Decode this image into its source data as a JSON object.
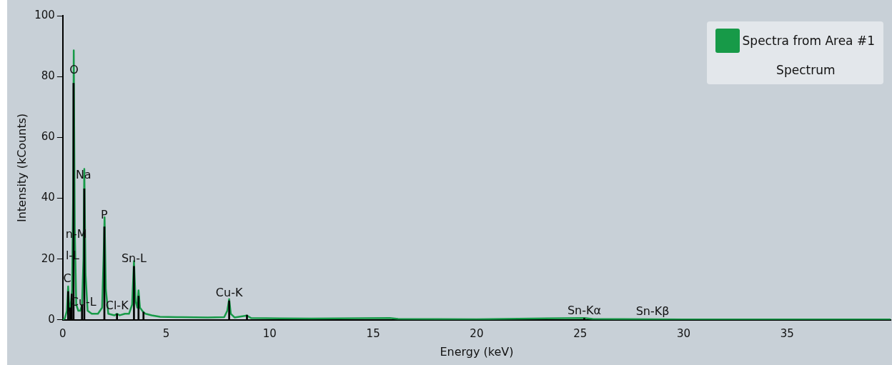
{
  "chart_data": {
    "type": "line",
    "xlabel": "Energy (keV)",
    "ylabel": "Intensity (kCounts)",
    "xlim": [
      0,
      40
    ],
    "xticks": [
      0,
      5,
      10,
      15,
      20,
      25,
      30,
      35
    ],
    "ylim": [
      0,
      100
    ],
    "yticks": [
      0,
      20,
      40,
      60,
      80,
      100
    ],
    "legend": "top right",
    "legend_title": "Spectrum",
    "marker": "none",
    "series": [
      {
        "name": "Spectra from Area #1",
        "color": "#179a48",
        "x": [
          0,
          0.1,
          0.2,
          0.26,
          0.32,
          0.4,
          0.45,
          0.5,
          0.53,
          0.58,
          0.65,
          0.75,
          0.85,
          0.93,
          1.0,
          1.04,
          1.1,
          1.2,
          1.4,
          1.7,
          1.9,
          1.97,
          2.02,
          2.08,
          2.2,
          2.5,
          2.62,
          2.75,
          3.0,
          3.2,
          3.35,
          3.44,
          3.52,
          3.6,
          3.66,
          3.73,
          3.9,
          4.0,
          4.3,
          4.7,
          5.5,
          7.0,
          7.8,
          7.95,
          8.04,
          8.12,
          8.3,
          8.9,
          9.1,
          10.5,
          12,
          15.8,
          16.2,
          20,
          25.2,
          25.6,
          30,
          40
        ],
        "values": [
          0,
          0.5,
          3,
          11,
          3,
          6,
          10,
          40,
          88.6,
          30,
          5,
          3,
          3,
          5,
          20,
          49.6,
          15,
          3,
          2,
          2,
          4,
          20,
          33.7,
          10,
          2,
          1.5,
          2,
          1.5,
          2,
          2,
          5,
          19.3,
          6,
          4,
          9.7,
          4,
          2.5,
          2,
          1.5,
          1,
          0.9,
          0.8,
          0.9,
          3,
          6.8,
          2,
          0.8,
          1.4,
          0.6,
          0.5,
          0.4,
          0.6,
          0.3,
          0.2,
          0.6,
          0.3,
          0.1,
          0.1
        ]
      },
      {
        "type": "bar",
        "color": "#000000",
        "x": [
          0.26,
          0.35,
          0.43,
          0.52,
          0.93,
          1.04,
          2.01,
          2.62,
          3.44,
          3.66,
          3.9,
          8.04,
          8.9,
          25.2
        ],
        "values": [
          9.3,
          4,
          8.5,
          77.8,
          5,
          43.1,
          30.6,
          2,
          17.6,
          7.8,
          2.6,
          6.3,
          1.6,
          0.5
        ]
      }
    ],
    "annotations": [
      {
        "text": "O",
        "x": 0.54,
        "y": 79.5
      },
      {
        "text": "Na",
        "x": 1.0,
        "y": 45
      },
      {
        "text": "P",
        "x": 2.0,
        "y": 32
      },
      {
        "text": "n-M",
        "x": 0.65,
        "y": 25.5
      },
      {
        "text": "l-L",
        "x": 0.47,
        "y": 18.5
      },
      {
        "text": "C",
        "x": 0.22,
        "y": 11
      },
      {
        "text": "Cu-L",
        "x": 1.0,
        "y": 3.3
      },
      {
        "text": "Cl-K",
        "x": 2.62,
        "y": 2
      },
      {
        "text": "Sn-L",
        "x": 3.44,
        "y": 17.6
      },
      {
        "text": "Cu-K",
        "x": 8.04,
        "y": 6.3
      },
      {
        "text": "Sn-Kα",
        "x": 25.2,
        "y": 0.5
      },
      {
        "text": "Sn-Kβ",
        "x": 28.5,
        "y": 0.3
      }
    ]
  }
}
